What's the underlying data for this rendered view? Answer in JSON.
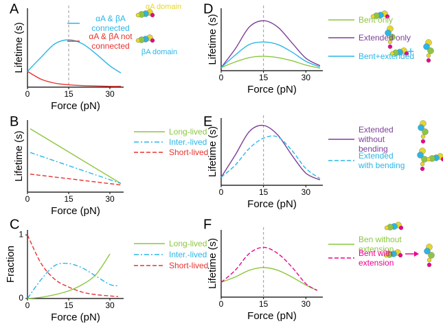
{
  "chart_data": [
    {
      "type": "line",
      "label": "A",
      "xlabel": "Force (pN)",
      "ylabel": "Lifetime (s)",
      "x": [
        0,
        5,
        10,
        15,
        20,
        25,
        30,
        34
      ],
      "xlim": [
        0,
        35
      ],
      "xticks": [
        0,
        15,
        30
      ],
      "ylim": [
        0,
        1
      ],
      "vline": 15,
      "series": [
        {
          "name": "αA & βA connected",
          "color": "#29b6e8",
          "dash": "solid",
          "values": [
            0.2,
            0.38,
            0.55,
            0.6,
            0.55,
            0.42,
            0.27,
            0.18
          ]
        },
        {
          "name": "αA & βA not connected",
          "color": "#e8312f",
          "dash": "solid",
          "values": [
            0.2,
            0.1,
            0.05,
            0.03,
            0.02,
            0.015,
            0.01,
            0.01
          ]
        }
      ],
      "annotations": [
        {
          "text": "αA domain",
          "color": "#e6d62a"
        },
        {
          "text": "βA domain",
          "color": "#29b6e8"
        }
      ]
    },
    {
      "type": "line",
      "label": "B",
      "xlabel": "Force (pN)",
      "ylabel": "Lifetime (s)",
      "x": [
        1,
        34
      ],
      "xlim": [
        0,
        35
      ],
      "xticks": [
        0,
        15,
        30
      ],
      "ylim": [
        0,
        1
      ],
      "series": [
        {
          "name": "Long-lived",
          "color": "#8cc63f",
          "dash": "solid",
          "values": [
            0.88,
            0.12
          ]
        },
        {
          "name": "Inter.-lived",
          "color": "#29b6e8",
          "dash": "dashdot",
          "values": [
            0.55,
            0.12
          ]
        },
        {
          "name": "Short-lived",
          "color": "#e8312f",
          "dash": "dashed",
          "values": [
            0.25,
            0.1
          ]
        }
      ]
    },
    {
      "type": "line",
      "label": "C",
      "xlabel": "Force (pN)",
      "ylabel": "Fraction",
      "x": [
        0,
        5,
        10,
        15,
        20,
        25,
        30,
        33
      ],
      "xlim": [
        0,
        35
      ],
      "xticks": [
        0,
        15,
        30
      ],
      "ylim": [
        0,
        1.08
      ],
      "yticks": [
        0,
        1
      ],
      "series": [
        {
          "name": "Long-lived",
          "color": "#8cc63f",
          "dash": "solid",
          "values": [
            0,
            0.02,
            0.06,
            0.12,
            0.22,
            0.38,
            0.7,
            null
          ]
        },
        {
          "name": "Inter.-lived",
          "color": "#29b6e8",
          "dash": "dashdot",
          "values": [
            0,
            0.3,
            0.52,
            0.55,
            0.48,
            0.35,
            0.22,
            0.2
          ]
        },
        {
          "name": "Short-lived",
          "color": "#e8312f",
          "dash": "dashed",
          "values": [
            1,
            0.55,
            0.3,
            0.18,
            0.1,
            0.06,
            0.04,
            0.03
          ]
        }
      ]
    },
    {
      "type": "line",
      "label": "D",
      "xlabel": "Force (pN)",
      "ylabel": "Lifetime (s)",
      "x": [
        0,
        5,
        10,
        15,
        20,
        25,
        30,
        35
      ],
      "xlim": [
        0,
        36
      ],
      "xticks": [
        0,
        15,
        30
      ],
      "ylim": [
        0,
        1
      ],
      "vline": 15,
      "series": [
        {
          "name": "Bent only",
          "color": "#8cc63f",
          "dash": "solid",
          "values": [
            0.05,
            0.14,
            0.21,
            0.23,
            0.21,
            0.16,
            0.09,
            0.04
          ]
        },
        {
          "name": "Extended only",
          "color": "#7b3f98",
          "dash": "solid",
          "values": [
            0.05,
            0.35,
            0.7,
            0.8,
            0.7,
            0.45,
            0.2,
            0.08
          ]
        },
        {
          "name": "Bent+extended",
          "color": "#29b6e8",
          "dash": "solid",
          "values": [
            0.05,
            0.25,
            0.42,
            0.46,
            0.42,
            0.3,
            0.15,
            0.06
          ]
        }
      ],
      "annotations": [
        {
          "text": "+",
          "color": "#29b6e8"
        }
      ]
    },
    {
      "type": "line",
      "label": "E",
      "xlabel": "Force (pN)",
      "ylabel": "Lifetime (s)",
      "x": [
        0,
        5,
        10,
        15,
        20,
        25,
        30,
        35
      ],
      "xlim": [
        0,
        36
      ],
      "xticks": [
        0,
        15,
        30
      ],
      "ylim": [
        0,
        1
      ],
      "vline": 15,
      "series": [
        {
          "name": "Extended without bending",
          "color": "#7b3f98",
          "dash": "solid",
          "values": [
            0.12,
            0.45,
            0.8,
            0.89,
            0.75,
            0.45,
            0.18,
            0.08
          ]
        },
        {
          "name": "Extended with bending",
          "color": "#29b6e8",
          "dash": "dashed",
          "values": [
            0.12,
            0.3,
            0.55,
            0.7,
            0.72,
            0.52,
            0.25,
            0.1
          ]
        }
      ]
    },
    {
      "type": "line",
      "label": "F",
      "xlabel": "Force (pN)",
      "ylabel": "Lifetime (s)",
      "x": [
        0,
        5,
        10,
        15,
        20,
        25,
        30,
        34
      ],
      "xlim": [
        0,
        36
      ],
      "xticks": [
        0,
        15,
        30
      ],
      "ylim": [
        0,
        1
      ],
      "vline": 15,
      "series": [
        {
          "name": "Ben without extension",
          "color": "#8cc63f",
          "dash": "solid",
          "values": [
            0.22,
            0.3,
            0.4,
            0.44,
            0.4,
            0.3,
            0.18,
            0.1
          ]
        },
        {
          "name": "Bent with extension",
          "color": "#ec008c",
          "dash": "dashed",
          "values": [
            0.22,
            0.4,
            0.65,
            0.74,
            0.65,
            0.45,
            0.2,
            0.1
          ]
        }
      ]
    }
  ]
}
